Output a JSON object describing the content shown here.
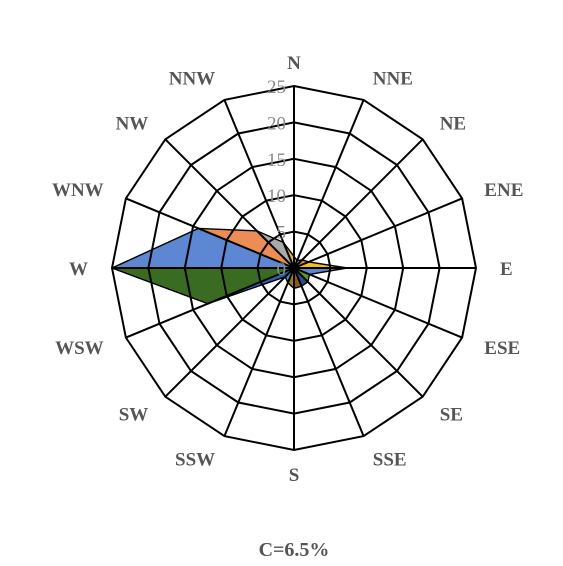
{
  "chart_data": {
    "type": "radar",
    "subtype": "wind-rose",
    "directions": [
      "N",
      "NNE",
      "NE",
      "ENE",
      "E",
      "ESE",
      "SE",
      "SSE",
      "S",
      "SSW",
      "SW",
      "WSW",
      "W",
      "WNW",
      "NW",
      "NNW"
    ],
    "rlim": [
      0,
      25
    ],
    "ticks": [
      0,
      5,
      10,
      15,
      20,
      25
    ],
    "tick_labels": [
      "0",
      "5",
      "10",
      "15",
      "20",
      "25"
    ],
    "grid": true,
    "legend": "none",
    "direction_values": [
      1.6,
      1.1,
      1.6,
      2.2,
      7.3,
      2.3,
      2.7,
      2.7,
      2.8,
      2.2,
      1.7,
      12.8,
      25.0,
      14.2,
      7.2,
      3.8
    ],
    "segments": [
      {
        "from": "N",
        "to": "NNE",
        "color": "#e8c21e"
      },
      {
        "from": "NNE",
        "to": "NE",
        "color": "#9e9e9e"
      },
      {
        "from": "NE",
        "to": "ENE",
        "color": "#e3832f"
      },
      {
        "from": "ENE",
        "to": "E",
        "color": "#f5c013"
      },
      {
        "from": "E",
        "to": "ESE",
        "color": "#5a86d3"
      },
      {
        "from": "ESE",
        "to": "SE",
        "color": "#4f9a3d"
      },
      {
        "from": "SE",
        "to": "SSE",
        "color": "#2d4d87"
      },
      {
        "from": "SSE",
        "to": "S",
        "color": "#8a5a23"
      },
      {
        "from": "S",
        "to": "SSW",
        "color": "#9a7a1e"
      },
      {
        "from": "SSW",
        "to": "SW",
        "color": "#5f7faf"
      },
      {
        "from": "SW",
        "to": "WSW",
        "color": "#2f63b0"
      },
      {
        "from": "WSW",
        "to": "W",
        "color": "#3a6b22"
      },
      {
        "from": "W",
        "to": "WNW",
        "color": "#5d87d2"
      },
      {
        "from": "WNW",
        "to": "NW",
        "color": "#ec8d55"
      },
      {
        "from": "NW",
        "to": "NNW",
        "color": "#a9a9a9"
      },
      {
        "from": "NNW",
        "to": "N",
        "color": "#e2bd22"
      }
    ],
    "calm_label": "C=6.5%"
  }
}
